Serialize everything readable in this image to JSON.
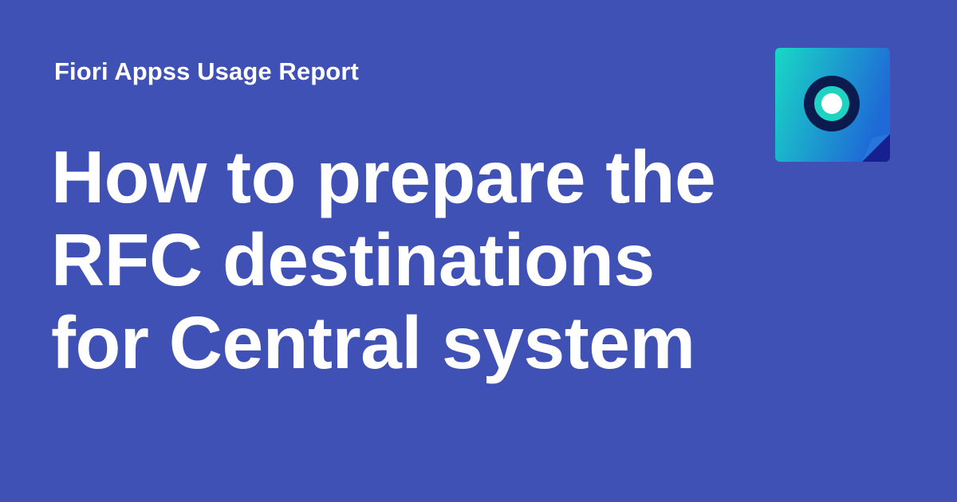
{
  "header": {
    "eyebrow": "Fiori Appss Usage Report"
  },
  "main": {
    "headline_lines": [
      "How to prepare the",
      "RFC destinations",
      "for Central system"
    ]
  },
  "icon": {
    "name": "record-app-icon"
  },
  "colors": {
    "background": "#3f51b5",
    "text": "#ffffff",
    "icon_gradient_start": "#19d3c5",
    "icon_gradient_end": "#1f6fd6",
    "icon_dark": "#0a1f55",
    "icon_corner": "#1a2a9e"
  }
}
